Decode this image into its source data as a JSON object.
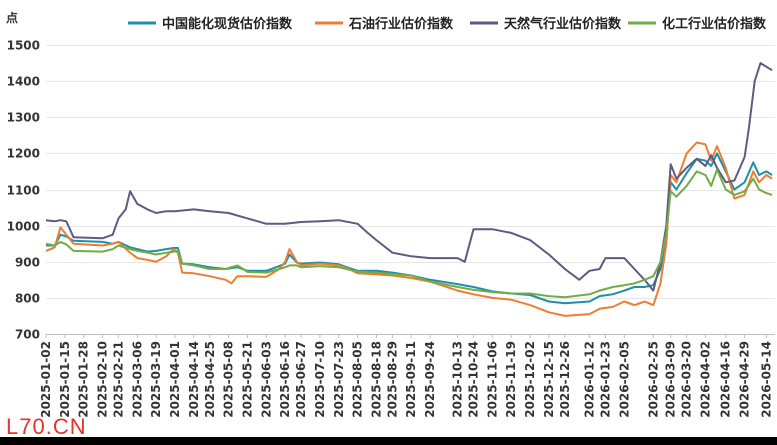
{
  "chart_data": {
    "type": "line",
    "ylabel": "点",
    "ylim": [
      700,
      1500
    ],
    "yticks": [
      700,
      800,
      900,
      1000,
      1100,
      1200,
      1300,
      1400,
      1500
    ],
    "xlim": [
      "2025-01-02",
      "2026-05-20"
    ],
    "xticks": [
      "2025-01-02",
      "2025-01-15",
      "2025-01-28",
      "2025-02-10",
      "2025-02-21",
      "2025-03-06",
      "2025-03-19",
      "2025-04-01",
      "2025-04-14",
      "2025-04-25",
      "2025-05-08",
      "2025-05-21",
      "2025-06-03",
      "2025-06-16",
      "2025-06-27",
      "2025-07-10",
      "2025-07-23",
      "2025-08-05",
      "2025-08-18",
      "2025-08-29",
      "2025-09-11",
      "2025-09-24",
      "2025-10-13",
      "2025-10-24",
      "2025-11-06",
      "2025-11-19",
      "2025-12-02",
      "2025-12-15",
      "2025-12-26",
      "2026-01-12",
      "2026-01-23",
      "2026-02-05",
      "2026-02-25",
      "2026-03-09",
      "2026-03-20",
      "2026-04-02",
      "2026-04-16",
      "2026-04-29",
      "2026-05-14"
    ],
    "grid": true,
    "legend": "top",
    "series": [
      {
        "name": "中国能化现货估价指数",
        "color": "#1f8fa8",
        "points": [
          [
            "2025-01-02",
            945
          ],
          [
            "2025-01-08",
            945
          ],
          [
            "2025-01-12",
            975
          ],
          [
            "2025-01-16",
            970
          ],
          [
            "2025-01-21",
            958
          ],
          [
            "2025-02-10",
            955
          ],
          [
            "2025-02-17",
            950
          ],
          [
            "2025-02-21",
            955
          ],
          [
            "2025-03-01",
            940
          ],
          [
            "2025-03-06",
            935
          ],
          [
            "2025-03-13",
            928
          ],
          [
            "2025-03-19",
            930
          ],
          [
            "2025-03-26",
            935
          ],
          [
            "2025-03-31",
            938
          ],
          [
            "2025-04-03",
            938
          ],
          [
            "2025-04-06",
            895
          ],
          [
            "2025-04-14",
            893
          ],
          [
            "2025-04-25",
            885
          ],
          [
            "2025-05-06",
            880
          ],
          [
            "2025-05-14",
            885
          ],
          [
            "2025-05-21",
            875
          ],
          [
            "2025-06-03",
            875
          ],
          [
            "2025-06-12",
            888
          ],
          [
            "2025-06-16",
            895
          ],
          [
            "2025-06-19",
            920
          ],
          [
            "2025-06-24",
            898
          ],
          [
            "2025-06-27",
            895
          ],
          [
            "2025-07-10",
            898
          ],
          [
            "2025-07-23",
            893
          ],
          [
            "2025-07-30",
            883
          ],
          [
            "2025-08-05",
            875
          ],
          [
            "2025-08-18",
            875
          ],
          [
            "2025-08-29",
            870
          ],
          [
            "2025-09-11",
            862
          ],
          [
            "2025-09-24",
            850
          ],
          [
            "2025-10-13",
            838
          ],
          [
            "2025-10-24",
            830
          ],
          [
            "2025-11-06",
            818
          ],
          [
            "2025-11-19",
            812
          ],
          [
            "2025-12-02",
            808
          ],
          [
            "2025-12-15",
            790
          ],
          [
            "2025-12-26",
            785
          ],
          [
            "2026-01-12",
            790
          ],
          [
            "2026-01-19",
            805
          ],
          [
            "2026-01-28",
            810
          ],
          [
            "2026-02-05",
            820
          ],
          [
            "2026-02-12",
            830
          ],
          [
            "2026-02-19",
            830
          ],
          [
            "2026-02-25",
            835
          ],
          [
            "2026-03-02",
            880
          ],
          [
            "2026-03-06",
            960
          ],
          [
            "2026-03-09",
            1120
          ],
          [
            "2026-03-13",
            1100
          ],
          [
            "2026-03-20",
            1145
          ],
          [
            "2026-03-27",
            1185
          ],
          [
            "2026-04-02",
            1180
          ],
          [
            "2026-04-06",
            1165
          ],
          [
            "2026-04-10",
            1200
          ],
          [
            "2026-04-16",
            1150
          ],
          [
            "2026-04-22",
            1100
          ],
          [
            "2026-04-29",
            1120
          ],
          [
            "2026-05-05",
            1175
          ],
          [
            "2026-05-09",
            1140
          ],
          [
            "2026-05-14",
            1150
          ],
          [
            "2026-05-18",
            1140
          ]
        ]
      },
      {
        "name": "石油行业估价指数",
        "color": "#ed7d31",
        "points": [
          [
            "2025-01-02",
            930
          ],
          [
            "2025-01-08",
            940
          ],
          [
            "2025-01-12",
            995
          ],
          [
            "2025-01-16",
            975
          ],
          [
            "2025-01-21",
            950
          ],
          [
            "2025-02-10",
            945
          ],
          [
            "2025-02-17",
            950
          ],
          [
            "2025-02-21",
            955
          ],
          [
            "2025-03-01",
            925
          ],
          [
            "2025-03-06",
            910
          ],
          [
            "2025-03-13",
            905
          ],
          [
            "2025-03-19",
            900
          ],
          [
            "2025-03-26",
            915
          ],
          [
            "2025-03-31",
            935
          ],
          [
            "2025-04-03",
            925
          ],
          [
            "2025-04-06",
            870
          ],
          [
            "2025-04-14",
            868
          ],
          [
            "2025-04-25",
            860
          ],
          [
            "2025-05-06",
            850
          ],
          [
            "2025-05-10",
            840
          ],
          [
            "2025-05-14",
            860
          ],
          [
            "2025-05-21",
            860
          ],
          [
            "2025-06-03",
            858
          ],
          [
            "2025-06-12",
            880
          ],
          [
            "2025-06-16",
            900
          ],
          [
            "2025-06-19",
            935
          ],
          [
            "2025-06-24",
            900
          ],
          [
            "2025-06-27",
            890
          ],
          [
            "2025-07-10",
            895
          ],
          [
            "2025-07-23",
            890
          ],
          [
            "2025-07-30",
            880
          ],
          [
            "2025-08-05",
            868
          ],
          [
            "2025-08-18",
            865
          ],
          [
            "2025-08-29",
            862
          ],
          [
            "2025-09-11",
            855
          ],
          [
            "2025-09-24",
            845
          ],
          [
            "2025-10-13",
            820
          ],
          [
            "2025-10-24",
            810
          ],
          [
            "2025-11-06",
            800
          ],
          [
            "2025-11-19",
            795
          ],
          [
            "2025-12-02",
            780
          ],
          [
            "2025-12-15",
            760
          ],
          [
            "2025-12-26",
            750
          ],
          [
            "2026-01-12",
            755
          ],
          [
            "2026-01-19",
            770
          ],
          [
            "2026-01-28",
            775
          ],
          [
            "2026-02-05",
            790
          ],
          [
            "2026-02-12",
            780
          ],
          [
            "2026-02-19",
            790
          ],
          [
            "2026-02-25",
            780
          ],
          [
            "2026-03-02",
            840
          ],
          [
            "2026-03-06",
            950
          ],
          [
            "2026-03-09",
            1140
          ],
          [
            "2026-03-13",
            1120
          ],
          [
            "2026-03-20",
            1200
          ],
          [
            "2026-03-27",
            1230
          ],
          [
            "2026-04-02",
            1225
          ],
          [
            "2026-04-06",
            1180
          ],
          [
            "2026-04-10",
            1220
          ],
          [
            "2026-04-16",
            1160
          ],
          [
            "2026-04-22",
            1075
          ],
          [
            "2026-04-29",
            1085
          ],
          [
            "2026-05-05",
            1150
          ],
          [
            "2026-05-09",
            1120
          ],
          [
            "2026-05-14",
            1140
          ],
          [
            "2026-05-18",
            1130
          ]
        ]
      },
      {
        "name": "天然气行业估价指数",
        "color": "#5e5a80",
        "points": [
          [
            "2025-01-02",
            1015
          ],
          [
            "2025-01-08",
            1012
          ],
          [
            "2025-01-12",
            1015
          ],
          [
            "2025-01-16",
            1012
          ],
          [
            "2025-01-21",
            968
          ],
          [
            "2025-02-10",
            965
          ],
          [
            "2025-02-17",
            975
          ],
          [
            "2025-02-21",
            1020
          ],
          [
            "2025-02-26",
            1045
          ],
          [
            "2025-03-01",
            1095
          ],
          [
            "2025-03-06",
            1060
          ],
          [
            "2025-03-13",
            1045
          ],
          [
            "2025-03-19",
            1035
          ],
          [
            "2025-03-26",
            1040
          ],
          [
            "2025-04-01",
            1040
          ],
          [
            "2025-04-14",
            1045
          ],
          [
            "2025-04-25",
            1040
          ],
          [
            "2025-05-08",
            1035
          ],
          [
            "2025-05-21",
            1020
          ],
          [
            "2025-06-03",
            1005
          ],
          [
            "2025-06-16",
            1005
          ],
          [
            "2025-06-27",
            1010
          ],
          [
            "2025-07-10",
            1012
          ],
          [
            "2025-07-23",
            1015
          ],
          [
            "2025-08-05",
            1005
          ],
          [
            "2025-08-12",
            980
          ],
          [
            "2025-08-18",
            960
          ],
          [
            "2025-08-29",
            925
          ],
          [
            "2025-09-11",
            915
          ],
          [
            "2025-09-24",
            910
          ],
          [
            "2025-10-13",
            910
          ],
          [
            "2025-10-18",
            900
          ],
          [
            "2025-10-24",
            990
          ],
          [
            "2025-11-06",
            990
          ],
          [
            "2025-11-19",
            980
          ],
          [
            "2025-12-02",
            960
          ],
          [
            "2025-12-15",
            920
          ],
          [
            "2025-12-26",
            880
          ],
          [
            "2026-01-05",
            850
          ],
          [
            "2026-01-12",
            875
          ],
          [
            "2026-01-19",
            880
          ],
          [
            "2026-01-23",
            910
          ],
          [
            "2026-02-05",
            910
          ],
          [
            "2026-02-12",
            880
          ],
          [
            "2026-02-19",
            850
          ],
          [
            "2026-02-25",
            820
          ],
          [
            "2026-03-02",
            900
          ],
          [
            "2026-03-06",
            1000
          ],
          [
            "2026-03-09",
            1170
          ],
          [
            "2026-03-13",
            1130
          ],
          [
            "2026-03-20",
            1160
          ],
          [
            "2026-03-27",
            1185
          ],
          [
            "2026-04-02",
            1165
          ],
          [
            "2026-04-06",
            1195
          ],
          [
            "2026-04-10",
            1160
          ],
          [
            "2026-04-16",
            1120
          ],
          [
            "2026-04-22",
            1125
          ],
          [
            "2026-04-29",
            1190
          ],
          [
            "2026-05-02",
            1270
          ],
          [
            "2026-05-06",
            1400
          ],
          [
            "2026-05-10",
            1450
          ],
          [
            "2026-05-14",
            1440
          ],
          [
            "2026-05-18",
            1430
          ]
        ]
      },
      {
        "name": "化工行业估价指数",
        "color": "#70ad47",
        "points": [
          [
            "2025-01-02",
            950
          ],
          [
            "2025-01-08",
            945
          ],
          [
            "2025-01-12",
            955
          ],
          [
            "2025-01-16",
            948
          ],
          [
            "2025-01-21",
            930
          ],
          [
            "2025-02-10",
            928
          ],
          [
            "2025-02-17",
            935
          ],
          [
            "2025-02-21",
            945
          ],
          [
            "2025-03-01",
            935
          ],
          [
            "2025-03-06",
            930
          ],
          [
            "2025-03-13",
            925
          ],
          [
            "2025-03-19",
            920
          ],
          [
            "2025-03-26",
            925
          ],
          [
            "2025-03-31",
            928
          ],
          [
            "2025-04-03",
            930
          ],
          [
            "2025-04-06",
            895
          ],
          [
            "2025-04-14",
            890
          ],
          [
            "2025-04-25",
            880
          ],
          [
            "2025-05-06",
            880
          ],
          [
            "2025-05-14",
            890
          ],
          [
            "2025-05-21",
            872
          ],
          [
            "2025-06-03",
            870
          ],
          [
            "2025-06-12",
            880
          ],
          [
            "2025-06-16",
            885
          ],
          [
            "2025-06-19",
            890
          ],
          [
            "2025-06-24",
            890
          ],
          [
            "2025-06-27",
            885
          ],
          [
            "2025-07-10",
            888
          ],
          [
            "2025-07-23",
            885
          ],
          [
            "2025-07-30",
            878
          ],
          [
            "2025-08-05",
            873
          ],
          [
            "2025-08-18",
            870
          ],
          [
            "2025-08-29",
            866
          ],
          [
            "2025-09-11",
            862
          ],
          [
            "2025-09-24",
            845
          ],
          [
            "2025-10-13",
            830
          ],
          [
            "2025-10-24",
            822
          ],
          [
            "2025-11-06",
            816
          ],
          [
            "2025-11-19",
            812
          ],
          [
            "2025-12-02",
            812
          ],
          [
            "2025-12-15",
            805
          ],
          [
            "2025-12-26",
            802
          ],
          [
            "2026-01-12",
            810
          ],
          [
            "2026-01-19",
            820
          ],
          [
            "2026-01-28",
            830
          ],
          [
            "2026-02-05",
            835
          ],
          [
            "2026-02-12",
            840
          ],
          [
            "2026-02-19",
            850
          ],
          [
            "2026-02-25",
            860
          ],
          [
            "2026-03-02",
            900
          ],
          [
            "2026-03-06",
            980
          ],
          [
            "2026-03-09",
            1095
          ],
          [
            "2026-03-13",
            1080
          ],
          [
            "2026-03-20",
            1110
          ],
          [
            "2026-03-27",
            1150
          ],
          [
            "2026-04-02",
            1140
          ],
          [
            "2026-04-06",
            1110
          ],
          [
            "2026-04-10",
            1155
          ],
          [
            "2026-04-16",
            1100
          ],
          [
            "2026-04-22",
            1085
          ],
          [
            "2026-04-29",
            1095
          ],
          [
            "2026-05-05",
            1130
          ],
          [
            "2026-05-09",
            1100
          ],
          [
            "2026-05-14",
            1090
          ],
          [
            "2026-05-18",
            1085
          ]
        ]
      }
    ]
  },
  "watermark": "L70.CN"
}
